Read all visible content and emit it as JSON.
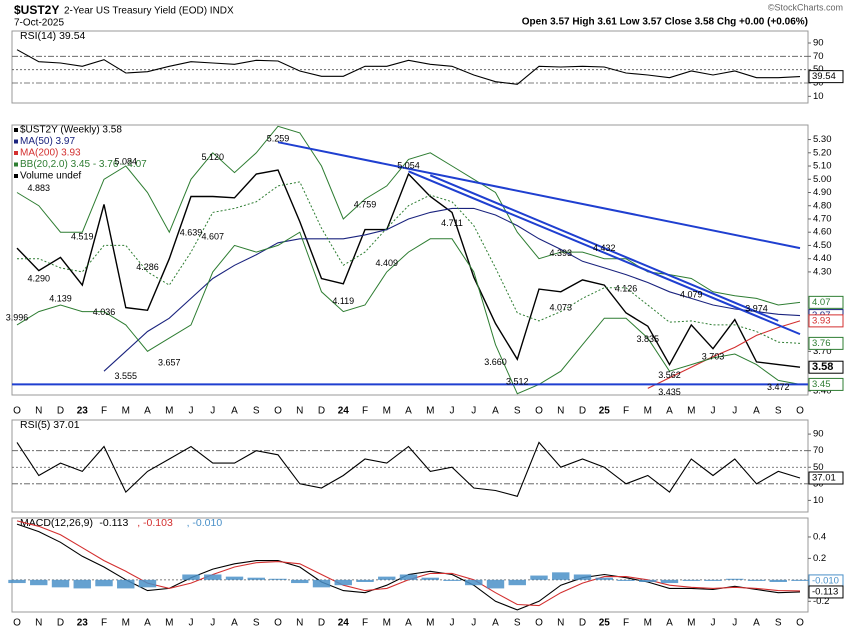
{
  "header": {
    "symbol": "$UST2Y",
    "name": "2-Year US Treasury Yield (EOD) INDX",
    "date": "7-Oct-2025",
    "quote": "Open 3.57 High 3.61 Low 3.57 Close 3.58 Chg +0.00 (+0.06%)",
    "credit": "©StockCharts.com"
  },
  "chart_data": {
    "type": "line",
    "x": [
      "2022-10",
      "2022-11",
      "2022-12",
      "2023-01",
      "2023-02",
      "2023-03",
      "2023-04",
      "2023-05",
      "2023-06",
      "2023-07",
      "2023-08",
      "2023-09",
      "2023-10",
      "2023-11",
      "2023-12",
      "2024-01",
      "2024-02",
      "2024-03",
      "2024-04",
      "2024-05",
      "2024-06",
      "2024-07",
      "2024-08",
      "2024-09",
      "2024-10",
      "2024-11",
      "2024-12",
      "2025-01",
      "2025-02",
      "2025-03",
      "2025-04",
      "2025-05",
      "2025-06",
      "2025-07",
      "2025-08",
      "2025-09",
      "2025-10"
    ],
    "xticks": [
      {
        "value": "2022-10",
        "label": "O"
      },
      {
        "value": "2022-11",
        "label": "N"
      },
      {
        "value": "2022-12",
        "label": "D"
      },
      {
        "value": "2023-01",
        "label": "23"
      },
      {
        "value": "2023-02",
        "label": "F"
      },
      {
        "value": "2023-03",
        "label": "M"
      },
      {
        "value": "2023-04",
        "label": "A"
      },
      {
        "value": "2023-05",
        "label": "M"
      },
      {
        "value": "2023-06",
        "label": "J"
      },
      {
        "value": "2023-07",
        "label": "J"
      },
      {
        "value": "2023-08",
        "label": "A"
      },
      {
        "value": "2023-09",
        "label": "S"
      },
      {
        "value": "2023-10",
        "label": "O"
      },
      {
        "value": "2023-11",
        "label": "N"
      },
      {
        "value": "2023-12",
        "label": "D"
      },
      {
        "value": "2024-01",
        "label": "24"
      },
      {
        "value": "2024-02",
        "label": "F"
      },
      {
        "value": "2024-03",
        "label": "M"
      },
      {
        "value": "2024-04",
        "label": "A"
      },
      {
        "value": "2024-05",
        "label": "M"
      },
      {
        "value": "2024-06",
        "label": "J"
      },
      {
        "value": "2024-07",
        "label": "J"
      },
      {
        "value": "2024-08",
        "label": "A"
      },
      {
        "value": "2024-09",
        "label": "S"
      },
      {
        "value": "2024-10",
        "label": "O"
      },
      {
        "value": "2024-11",
        "label": "N"
      },
      {
        "value": "2024-12",
        "label": "D"
      },
      {
        "value": "2025-01",
        "label": "25"
      },
      {
        "value": "2025-02",
        "label": "F"
      },
      {
        "value": "2025-03",
        "label": "M"
      },
      {
        "value": "2025-04",
        "label": "A"
      },
      {
        "value": "2025-05",
        "label": "M"
      },
      {
        "value": "2025-06",
        "label": "J"
      },
      {
        "value": "2025-07",
        "label": "J"
      },
      {
        "value": "2025-08",
        "label": "A"
      },
      {
        "value": "2025-09",
        "label": "S"
      },
      {
        "value": "2025-10",
        "label": "O"
      }
    ],
    "panels": [
      {
        "type": "line",
        "title": "RSI(14) 39.54",
        "ylim": [
          0,
          108
        ],
        "yticks": [
          90,
          70,
          50,
          30,
          10
        ],
        "levels": [
          70,
          50,
          30
        ],
        "series": [
          {
            "color": "#000000",
            "values": [
              80,
              62,
              60,
              55,
              65,
              45,
              47,
              55,
              62,
              60,
              58,
              64,
              63,
              48,
              40,
              40,
              55,
              55,
              64,
              58,
              55,
              42,
              32,
              28,
              55,
              54,
              55,
              54,
              45,
              42,
              38,
              48,
              42,
              48,
              38,
              38,
              39.54
            ]
          }
        ],
        "tags": [
          {
            "value": 39.54,
            "color": "#000000"
          }
        ]
      },
      {
        "type": "line",
        "ylim": [
          3.37,
          5.41
        ],
        "yticks": [
          {
            "value": 5.3,
            "label": "5.30"
          },
          {
            "value": 5.2,
            "label": "5.20"
          },
          {
            "value": 5.1,
            "label": "5.10"
          },
          {
            "value": 5.0,
            "label": "5.00"
          },
          {
            "value": 4.9,
            "label": "4.90"
          },
          {
            "value": 4.8,
            "label": "4.80"
          },
          {
            "value": 4.7,
            "label": "4.70"
          },
          {
            "value": 4.6,
            "label": "4.60"
          },
          {
            "value": 4.5,
            "label": "4.50"
          },
          {
            "value": 4.4,
            "label": "4.40"
          },
          {
            "value": 4.3,
            "label": "4.30"
          },
          {
            "value": 3.7,
            "label": "3.70"
          },
          {
            "value": 3.4,
            "label": "3.40"
          }
        ],
        "series": [
          {
            "name": "$UST2Y (Weekly) 3.58",
            "color": "#000000",
            "values": [
              4.48,
              4.31,
              4.41,
              4.2,
              4.81,
              4.03,
              4.01,
              4.4,
              4.87,
              4.87,
              4.86,
              5.04,
              5.07,
              4.68,
              4.25,
              4.21,
              4.62,
              4.62,
              5.04,
              4.87,
              4.75,
              4.26,
              3.91,
              3.64,
              4.17,
              4.15,
              4.24,
              4.2,
              3.99,
              3.89,
              3.6,
              3.9,
              3.72,
              3.94,
              3.62,
              3.6,
              3.58
            ]
          },
          {
            "name": "MA(50) 3.97",
            "color": "#1a237e",
            "values": [
              null,
              null,
              null,
              null,
              3.55,
              3.7,
              3.85,
              3.95,
              4.1,
              4.25,
              4.35,
              4.43,
              4.52,
              4.55,
              4.55,
              4.55,
              4.58,
              4.62,
              4.7,
              4.75,
              4.78,
              4.78,
              4.73,
              4.65,
              4.55,
              4.47,
              4.38,
              4.33,
              4.28,
              4.22,
              4.15,
              4.1,
              4.05,
              4.02,
              4.0,
              3.98,
              3.97
            ]
          },
          {
            "name": "MA(200) 3.93",
            "color": "#d32f2f",
            "values": [
              null,
              null,
              null,
              null,
              null,
              null,
              null,
              null,
              null,
              null,
              null,
              null,
              null,
              null,
              null,
              null,
              null,
              null,
              null,
              null,
              null,
              null,
              null,
              null,
              null,
              null,
              null,
              null,
              null,
              3.42,
              3.5,
              3.58,
              3.66,
              3.73,
              3.82,
              3.88,
              3.93
            ]
          },
          {
            "name": "BB(20,2.0) 3.45 - 3.76 - 4.07",
            "color": "#2e7d32",
            "upper": [
              4.9,
              4.8,
              4.6,
              4.6,
              5.0,
              5.1,
              4.9,
              4.6,
              5.0,
              5.2,
              5.05,
              5.2,
              5.4,
              5.35,
              5.1,
              4.7,
              4.85,
              4.95,
              5.15,
              5.2,
              5.1,
              5.0,
              4.9,
              4.6,
              4.4,
              4.45,
              4.45,
              4.4,
              4.4,
              4.3,
              4.28,
              4.25,
              4.15,
              4.12,
              4.1,
              4.05,
              4.07
            ],
            "middle": [
              4.4,
              4.4,
              4.33,
              4.3,
              4.5,
              4.5,
              4.3,
              4.2,
              4.45,
              4.75,
              4.78,
              4.83,
              4.95,
              4.98,
              4.63,
              4.35,
              4.45,
              4.63,
              4.8,
              4.88,
              4.83,
              4.65,
              4.33,
              3.99,
              3.93,
              4.0,
              4.1,
              4.18,
              4.18,
              4.05,
              3.92,
              3.93,
              3.9,
              3.9,
              3.85,
              3.77,
              3.76
            ],
            "lower": [
              3.9,
              4.0,
              4.05,
              4.0,
              4.0,
              3.9,
              3.7,
              3.8,
              3.9,
              4.3,
              4.5,
              4.45,
              4.5,
              4.6,
              4.15,
              4.0,
              4.05,
              4.3,
              4.45,
              4.55,
              4.55,
              4.3,
              3.75,
              3.38,
              3.45,
              3.55,
              3.75,
              3.95,
              3.95,
              3.8,
              3.55,
              3.6,
              3.65,
              3.68,
              3.6,
              3.48,
              3.45
            ]
          },
          {
            "name": "Volume undef",
            "color": "#000000"
          }
        ],
        "trendlines": [
          {
            "color": "#1f3fd0",
            "x": [
              "2023-10",
              "2025-10"
            ],
            "values": [
              5.28,
              4.48
            ]
          },
          {
            "color": "#1f3fd0",
            "x": [
              "2024-04",
              "2025-10"
            ],
            "values": [
              5.06,
              3.83
            ]
          },
          {
            "color": "#1f3fd0",
            "x": [
              "2024-05",
              "2025-09"
            ],
            "values": [
              5.03,
              3.93
            ]
          },
          {
            "color": "#1f3fd0",
            "x": [
              "2022-10",
              "2025-10"
            ],
            "values": [
              3.45,
              3.45
            ]
          }
        ],
        "annotations": [
          {
            "x": "2022-10",
            "value": 3.996
          },
          {
            "x": "2022-11",
            "value": 4.883
          },
          {
            "x": "2022-11",
            "value": 4.29,
            "label": "4.290"
          },
          {
            "x": "2022-12",
            "value": 4.139
          },
          {
            "x": "2023-01",
            "value": 4.519
          },
          {
            "x": "2023-02",
            "value": 4.036
          },
          {
            "x": "2023-03",
            "value": 5.084
          },
          {
            "x": "2023-04",
            "value": 4.286
          },
          {
            "x": "2023-03",
            "value": 3.555
          },
          {
            "x": "2023-05",
            "value": 3.657
          },
          {
            "x": "2023-07",
            "value": 5.12,
            "label": "5.120"
          },
          {
            "x": "2023-06",
            "value": 4.639
          },
          {
            "x": "2023-07",
            "value": 4.607
          },
          {
            "x": "2023-10",
            "value": 5.259
          },
          {
            "x": "2024-02",
            "value": 4.759
          },
          {
            "x": "2024-01",
            "value": 4.119
          },
          {
            "x": "2024-03",
            "value": 4.409
          },
          {
            "x": "2024-04",
            "value": 5.054
          },
          {
            "x": "2024-06",
            "value": 4.711
          },
          {
            "x": "2024-08",
            "value": 3.66,
            "label": "3.660"
          },
          {
            "x": "2024-09",
            "value": 3.512
          },
          {
            "x": "2024-11",
            "value": 4.393
          },
          {
            "x": "2024-11",
            "value": 4.073
          },
          {
            "x": "2025-01",
            "value": 4.432
          },
          {
            "x": "2025-02",
            "value": 4.126
          },
          {
            "x": "2025-03",
            "value": 3.835
          },
          {
            "x": "2025-04",
            "value": 3.435
          },
          {
            "x": "2025-04",
            "value": 3.562
          },
          {
            "x": "2025-05",
            "value": 4.079
          },
          {
            "x": "2025-06",
            "value": 3.703
          },
          {
            "x": "2025-08",
            "value": 3.974
          },
          {
            "x": "2025-09",
            "value": 3.472
          }
        ],
        "tags": [
          {
            "value": 4.07,
            "color": "#2e7d32"
          },
          {
            "value": 3.97,
            "color": "#1a237e"
          },
          {
            "value": 3.93,
            "color": "#d32f2f"
          },
          {
            "value": 3.76,
            "color": "#2e7d32"
          },
          {
            "value": 3.58,
            "color": "#000000"
          },
          {
            "value": 3.45,
            "color": "#2e7d32"
          }
        ]
      },
      {
        "type": "line",
        "title": "RSI(5) 37.01",
        "ylim": [
          -4,
          107
        ],
        "yticks": [
          90,
          70,
          50,
          30,
          10
        ],
        "levels": [
          70,
          50,
          30
        ],
        "series": [
          {
            "color": "#000000",
            "values": [
              80,
              40,
              55,
              45,
              75,
              20,
              45,
              60,
              75,
              55,
              55,
              70,
              65,
              30,
              25,
              40,
              60,
              55,
              75,
              45,
              50,
              25,
              22,
              15,
              80,
              50,
              60,
              50,
              30,
              40,
              20,
              60,
              40,
              60,
              30,
              45,
              37.01
            ]
          }
        ],
        "tags": [
          {
            "value": 37.01,
            "color": "#000000"
          }
        ]
      },
      {
        "type": "line",
        "title": "MACD(12,26,9)",
        "ylim": [
          -0.3,
          0.577
        ],
        "yticks": [
          0.4,
          0.2,
          0,
          -0.2
        ],
        "levels": [
          0
        ],
        "series": [
          {
            "name": "-0.113",
            "color": "#000000",
            "values": [
              0.52,
              0.45,
              0.35,
              0.22,
              0.12,
              0.0,
              -0.1,
              -0.08,
              0.02,
              0.1,
              0.15,
              0.18,
              0.18,
              0.12,
              -0.02,
              -0.1,
              -0.12,
              -0.05,
              0.05,
              0.08,
              0.05,
              -0.05,
              -0.2,
              -0.28,
              -0.2,
              -0.05,
              0.02,
              0.05,
              0.02,
              -0.02,
              -0.08,
              -0.08,
              -0.09,
              -0.06,
              -0.09,
              -0.12,
              -0.113
            ]
          },
          {
            "name": ", -0.103",
            "color": "#d32f2f",
            "values": [
              0.55,
              0.5,
              0.42,
              0.3,
              0.18,
              0.08,
              -0.03,
              -0.08,
              -0.03,
              0.05,
              0.12,
              0.16,
              0.17,
              0.15,
              0.05,
              -0.05,
              -0.1,
              -0.08,
              0.0,
              0.06,
              0.06,
              0.0,
              -0.12,
              -0.23,
              -0.24,
              -0.12,
              -0.03,
              0.03,
              0.03,
              0.0,
              -0.05,
              -0.07,
              -0.08,
              -0.07,
              -0.08,
              -0.1,
              -0.103
            ]
          },
          {
            "name": ", -0.010",
            "color": "#4a90c8",
            "type": "bar",
            "values": [
              -0.03,
              -0.05,
              -0.07,
              -0.08,
              -0.06,
              -0.08,
              -0.07,
              0,
              0.05,
              0.05,
              0.03,
              0.02,
              0.01,
              -0.03,
              -0.07,
              -0.05,
              -0.02,
              0.03,
              0.05,
              0.02,
              -0.01,
              -0.05,
              -0.08,
              -0.05,
              0.04,
              0.07,
              0.05,
              0.02,
              -0.01,
              -0.02,
              -0.03,
              -0.01,
              -0.01,
              0.01,
              -0.01,
              -0.02,
              -0.01
            ]
          }
        ],
        "tags": [
          {
            "value": -0.01,
            "label": "-0.010",
            "color": "#4a90c8"
          },
          {
            "value": -0.113,
            "color": "#000000"
          }
        ]
      }
    ]
  }
}
